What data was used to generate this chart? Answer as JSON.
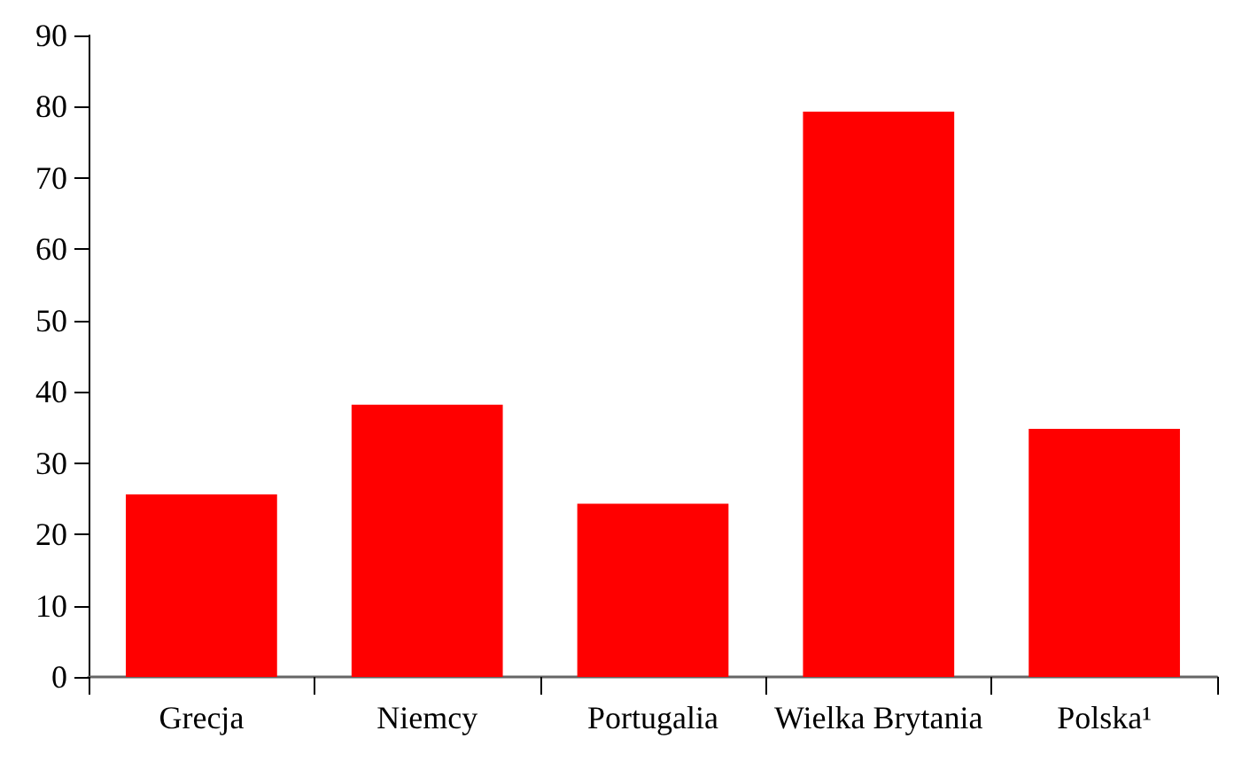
{
  "chart_data": {
    "type": "bar",
    "categories": [
      "Grecja",
      "Niemcy",
      "Portugalia",
      "Wielka Brytania",
      "Polska¹"
    ],
    "values": [
      25.6,
      38.2,
      24.3,
      79.3,
      34.8
    ],
    "color": "#ff0000",
    "ylim": [
      0,
      90
    ],
    "yticks": [
      0,
      10,
      20,
      30,
      40,
      50,
      60,
      70,
      80,
      90
    ],
    "grid": false
  }
}
